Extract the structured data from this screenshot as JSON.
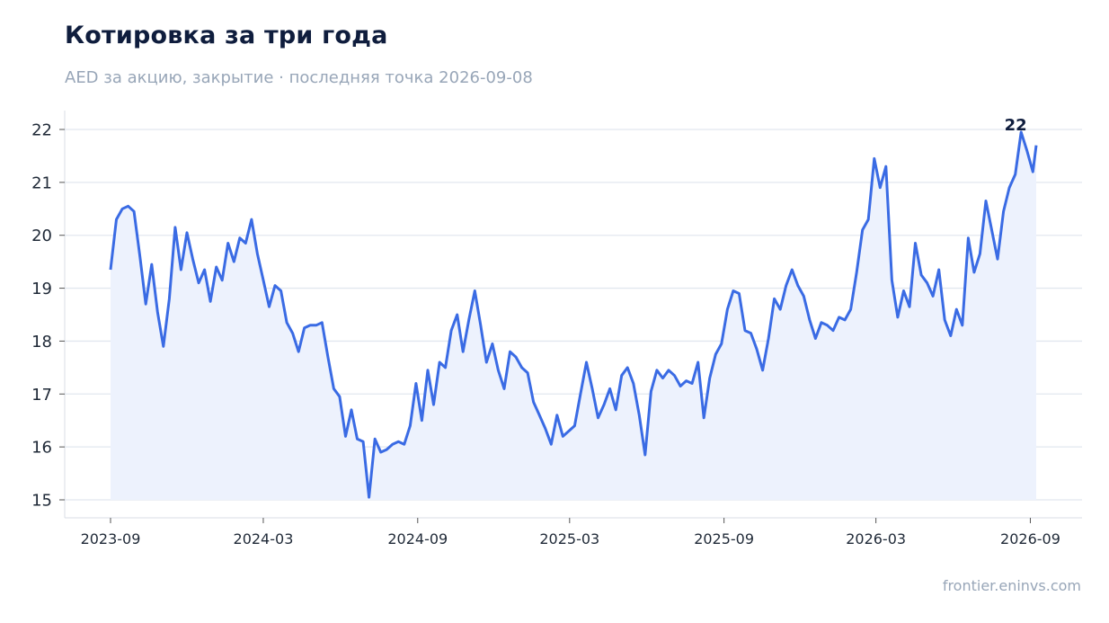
{
  "chart_data": {
    "type": "line",
    "title": "Котировка за три года",
    "subtitle": "AED за акцию, закрытие · последняя точка 2026-09-08",
    "source": "frontier.eninvs.com",
    "xlabel": "",
    "ylabel": "",
    "xlim": [
      "2023-09-01",
      "2026-09-08"
    ],
    "ylim": [
      15,
      22
    ],
    "x_ticks": [
      "2023-09",
      "2024-03",
      "2024-09",
      "2025-03",
      "2025-09",
      "2026-03",
      "2026-09"
    ],
    "y_ticks": [
      15,
      16,
      17,
      18,
      19,
      20,
      21,
      22
    ],
    "grid": "horizontal",
    "legend": "none",
    "end_label": "22",
    "colors": {
      "line": "#3a6be4",
      "fill": "#edf2fd",
      "grid": "#e2e7ef",
      "axis": "#d9dee6"
    },
    "series": [
      {
        "values": [
          [
            "2023-09-01",
            19.35
          ],
          [
            "2023-09-08",
            20.3
          ],
          [
            "2023-09-15",
            20.5
          ],
          [
            "2023-09-22",
            20.55
          ],
          [
            "2023-09-29",
            20.45
          ],
          [
            "2023-10-06",
            19.6
          ],
          [
            "2023-10-13",
            18.7
          ],
          [
            "2023-10-20",
            19.45
          ],
          [
            "2023-10-27",
            18.55
          ],
          [
            "2023-11-03",
            17.9
          ],
          [
            "2023-11-10",
            18.8
          ],
          [
            "2023-11-17",
            20.15
          ],
          [
            "2023-11-24",
            19.35
          ],
          [
            "2023-12-01",
            20.05
          ],
          [
            "2023-12-08",
            19.55
          ],
          [
            "2023-12-15",
            19.1
          ],
          [
            "2023-12-22",
            19.35
          ],
          [
            "2023-12-29",
            18.75
          ],
          [
            "2024-01-05",
            19.4
          ],
          [
            "2024-01-12",
            19.15
          ],
          [
            "2024-01-19",
            19.85
          ],
          [
            "2024-01-26",
            19.5
          ],
          [
            "2024-02-02",
            19.95
          ],
          [
            "2024-02-09",
            19.85
          ],
          [
            "2024-02-16",
            20.3
          ],
          [
            "2024-02-23",
            19.65
          ],
          [
            "2024-03-01",
            19.15
          ],
          [
            "2024-03-08",
            18.65
          ],
          [
            "2024-03-15",
            19.05
          ],
          [
            "2024-03-22",
            18.95
          ],
          [
            "2024-03-29",
            18.35
          ],
          [
            "2024-04-05",
            18.15
          ],
          [
            "2024-04-12",
            17.8
          ],
          [
            "2024-04-19",
            18.25
          ],
          [
            "2024-04-26",
            18.3
          ],
          [
            "2024-05-03",
            18.3
          ],
          [
            "2024-05-10",
            18.35
          ],
          [
            "2024-05-17",
            17.7
          ],
          [
            "2024-05-24",
            17.1
          ],
          [
            "2024-05-31",
            16.95
          ],
          [
            "2024-06-07",
            16.2
          ],
          [
            "2024-06-14",
            16.7
          ],
          [
            "2024-06-21",
            16.15
          ],
          [
            "2024-06-28",
            16.1
          ],
          [
            "2024-07-05",
            15.05
          ],
          [
            "2024-07-12",
            16.15
          ],
          [
            "2024-07-19",
            15.9
          ],
          [
            "2024-07-26",
            15.95
          ],
          [
            "2024-08-02",
            16.05
          ],
          [
            "2024-08-09",
            16.1
          ],
          [
            "2024-08-16",
            16.05
          ],
          [
            "2024-08-23",
            16.4
          ],
          [
            "2024-08-30",
            17.2
          ],
          [
            "2024-09-06",
            16.5
          ],
          [
            "2024-09-13",
            17.45
          ],
          [
            "2024-09-20",
            16.8
          ],
          [
            "2024-09-27",
            17.6
          ],
          [
            "2024-10-04",
            17.5
          ],
          [
            "2024-10-11",
            18.2
          ],
          [
            "2024-10-18",
            18.5
          ],
          [
            "2024-10-25",
            17.8
          ],
          [
            "2024-11-01",
            18.4
          ],
          [
            "2024-11-08",
            18.95
          ],
          [
            "2024-11-15",
            18.3
          ],
          [
            "2024-11-22",
            17.6
          ],
          [
            "2024-11-29",
            17.95
          ],
          [
            "2024-12-06",
            17.45
          ],
          [
            "2024-12-13",
            17.1
          ],
          [
            "2024-12-20",
            17.8
          ],
          [
            "2024-12-27",
            17.7
          ],
          [
            "2025-01-03",
            17.5
          ],
          [
            "2025-01-10",
            17.4
          ],
          [
            "2025-01-17",
            16.85
          ],
          [
            "2025-01-24",
            16.6
          ],
          [
            "2025-01-31",
            16.35
          ],
          [
            "2025-02-07",
            16.05
          ],
          [
            "2025-02-14",
            16.6
          ],
          [
            "2025-02-21",
            16.2
          ],
          [
            "2025-02-28",
            16.3
          ],
          [
            "2025-03-07",
            16.4
          ],
          [
            "2025-03-14",
            17.0
          ],
          [
            "2025-03-21",
            17.6
          ],
          [
            "2025-03-28",
            17.1
          ],
          [
            "2025-04-04",
            16.55
          ],
          [
            "2025-04-11",
            16.8
          ],
          [
            "2025-04-18",
            17.1
          ],
          [
            "2025-04-25",
            16.7
          ],
          [
            "2025-05-02",
            17.35
          ],
          [
            "2025-05-09",
            17.5
          ],
          [
            "2025-05-16",
            17.2
          ],
          [
            "2025-05-23",
            16.6
          ],
          [
            "2025-05-30",
            15.85
          ],
          [
            "2025-06-06",
            17.05
          ],
          [
            "2025-06-13",
            17.45
          ],
          [
            "2025-06-20",
            17.3
          ],
          [
            "2025-06-27",
            17.45
          ],
          [
            "2025-07-04",
            17.35
          ],
          [
            "2025-07-11",
            17.15
          ],
          [
            "2025-07-18",
            17.25
          ],
          [
            "2025-07-25",
            17.2
          ],
          [
            "2025-08-01",
            17.6
          ],
          [
            "2025-08-08",
            16.55
          ],
          [
            "2025-08-15",
            17.3
          ],
          [
            "2025-08-22",
            17.75
          ],
          [
            "2025-08-29",
            17.95
          ],
          [
            "2025-09-05",
            18.6
          ],
          [
            "2025-09-12",
            18.95
          ],
          [
            "2025-09-19",
            18.9
          ],
          [
            "2025-09-26",
            18.2
          ],
          [
            "2025-10-03",
            18.15
          ],
          [
            "2025-10-10",
            17.85
          ],
          [
            "2025-10-17",
            17.45
          ],
          [
            "2025-10-24",
            18.05
          ],
          [
            "2025-10-31",
            18.8
          ],
          [
            "2025-11-07",
            18.6
          ],
          [
            "2025-11-14",
            19.05
          ],
          [
            "2025-11-21",
            19.35
          ],
          [
            "2025-11-28",
            19.05
          ],
          [
            "2025-12-05",
            18.85
          ],
          [
            "2025-12-12",
            18.4
          ],
          [
            "2025-12-19",
            18.05
          ],
          [
            "2025-12-26",
            18.35
          ],
          [
            "2026-01-02",
            18.3
          ],
          [
            "2026-01-09",
            18.2
          ],
          [
            "2026-01-16",
            18.45
          ],
          [
            "2026-01-23",
            18.4
          ],
          [
            "2026-01-30",
            18.6
          ],
          [
            "2026-02-06",
            19.3
          ],
          [
            "2026-02-13",
            20.1
          ],
          [
            "2026-02-20",
            20.3
          ],
          [
            "2026-02-27",
            21.45
          ],
          [
            "2026-03-06",
            20.9
          ],
          [
            "2026-03-13",
            21.3
          ],
          [
            "2026-03-20",
            19.15
          ],
          [
            "2026-03-27",
            18.45
          ],
          [
            "2026-04-03",
            18.95
          ],
          [
            "2026-04-10",
            18.65
          ],
          [
            "2026-04-17",
            19.85
          ],
          [
            "2026-04-24",
            19.25
          ],
          [
            "2026-05-01",
            19.1
          ],
          [
            "2026-05-08",
            18.85
          ],
          [
            "2026-05-15",
            19.35
          ],
          [
            "2026-05-22",
            18.4
          ],
          [
            "2026-05-29",
            18.1
          ],
          [
            "2026-06-05",
            18.6
          ],
          [
            "2026-06-12",
            18.3
          ],
          [
            "2026-06-19",
            19.95
          ],
          [
            "2026-06-26",
            19.3
          ],
          [
            "2026-07-03",
            19.65
          ],
          [
            "2026-07-10",
            20.65
          ],
          [
            "2026-07-17",
            20.1
          ],
          [
            "2026-07-24",
            19.55
          ],
          [
            "2026-07-31",
            20.45
          ],
          [
            "2026-08-07",
            20.9
          ],
          [
            "2026-08-14",
            21.15
          ],
          [
            "2026-08-21",
            21.95
          ],
          [
            "2026-08-28",
            21.6
          ],
          [
            "2026-09-04",
            21.2
          ],
          [
            "2026-09-08",
            21.7
          ]
        ]
      }
    ]
  }
}
